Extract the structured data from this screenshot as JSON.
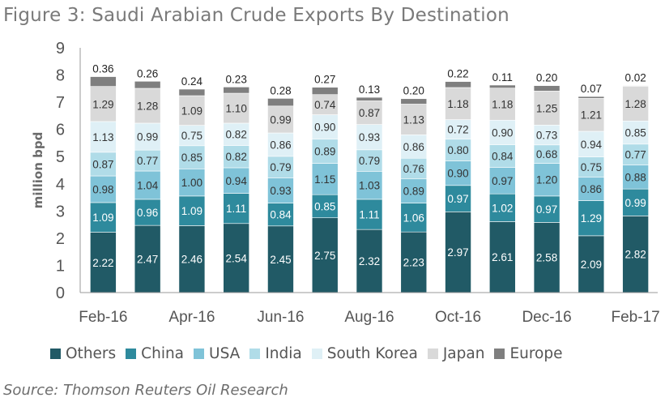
{
  "title": "Figure 3: Saudi Arabian Crude Exports By Destination",
  "source": "Source: Thomson Reuters Oil Research",
  "chart_data": {
    "type": "bar",
    "stacked": true,
    "title": "Figure 3: Saudi Arabian Crude Exports By Destination",
    "xlabel": "",
    "ylabel": "million bpd",
    "ylim": [
      0,
      9
    ],
    "yticks": [
      0,
      1,
      2,
      3,
      4,
      5,
      6,
      7,
      8,
      9
    ],
    "categories": [
      "Feb-16",
      "Mar-16",
      "Apr-16",
      "May-16",
      "Jun-16",
      "Jul-16",
      "Aug-16",
      "Sep-16",
      "Oct-16",
      "Nov-16",
      "Dec-16",
      "Jan-17",
      "Feb-17"
    ],
    "x_tick_labels": [
      "Feb-16",
      "",
      "Apr-16",
      "",
      "Jun-16",
      "",
      "Aug-16",
      "",
      "Oct-16",
      "",
      "Dec-16",
      "",
      "Feb-17"
    ],
    "grid": false,
    "legend_position": "bottom",
    "series": [
      {
        "name": "Others",
        "color": "#215a66",
        "label_color": "#ffffff",
        "values": [
          2.22,
          2.47,
          2.46,
          2.54,
          2.45,
          2.75,
          2.32,
          2.23,
          2.97,
          2.61,
          2.58,
          2.09,
          2.82
        ]
      },
      {
        "name": "China",
        "color": "#2e8a9d",
        "label_color": "#ffffff",
        "values": [
          1.09,
          0.96,
          1.09,
          1.11,
          0.84,
          0.85,
          1.11,
          1.06,
          0.97,
          1.02,
          0.97,
          1.29,
          0.99
        ]
      },
      {
        "name": "USA",
        "color": "#7fc3d8",
        "label_color": "#333333",
        "values": [
          0.98,
          1.04,
          1.0,
          0.94,
          0.93,
          1.15,
          1.03,
          0.89,
          0.9,
          0.97,
          1.2,
          0.86,
          0.88
        ]
      },
      {
        "name": "India",
        "color": "#b0dce8",
        "label_color": "#333333",
        "values": [
          0.87,
          0.77,
          0.85,
          0.82,
          0.79,
          0.89,
          0.79,
          0.76,
          0.8,
          0.84,
          0.68,
          0.75,
          0.77
        ]
      },
      {
        "name": "South Korea",
        "color": "#dff0f6",
        "label_color": "#333333",
        "values": [
          1.13,
          0.99,
          0.75,
          0.82,
          0.86,
          0.9,
          0.93,
          0.86,
          0.72,
          0.9,
          0.73,
          0.94,
          0.85
        ]
      },
      {
        "name": "Japan",
        "color": "#d9d9d9",
        "label_color": "#333333",
        "values": [
          1.29,
          1.28,
          1.09,
          1.1,
          0.99,
          0.74,
          0.87,
          1.13,
          1.18,
          1.18,
          1.25,
          1.21,
          1.28
        ]
      },
      {
        "name": "Europe",
        "color": "#7f7f7f",
        "label_color": "#222222",
        "values": [
          0.36,
          0.26,
          0.24,
          0.23,
          0.28,
          0.27,
          0.13,
          0.2,
          0.22,
          0.11,
          0.2,
          0.07,
          0.02
        ]
      }
    ]
  }
}
